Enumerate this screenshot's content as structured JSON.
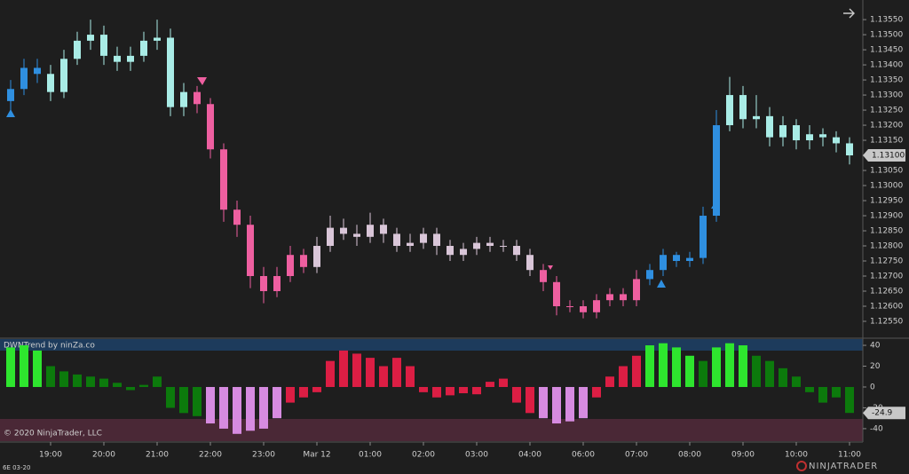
{
  "chart_data": [
    {
      "type": "candlestick",
      "categories": [
        null,
        null,
        null,
        "19:00",
        null,
        null,
        null,
        "20:00",
        null,
        null,
        null,
        "21:00",
        null,
        null,
        null,
        "22:00",
        null,
        null,
        null,
        "23:00",
        null,
        null,
        null,
        "Mar 12",
        null,
        null,
        null,
        "01:00",
        null,
        null,
        null,
        "02:00",
        null,
        null,
        null,
        "03:00",
        null,
        null,
        null,
        "04:00",
        null,
        null,
        null,
        "06:00",
        null,
        null,
        null,
        "07:00",
        null,
        null,
        null,
        "08:00",
        null,
        null,
        null,
        "09:00",
        null,
        null,
        null,
        "10:00",
        null,
        null,
        null,
        "11:00"
      ],
      "open": [
        1.1328,
        1.1332,
        1.1339,
        1.1337,
        1.1331,
        1.1342,
        1.1348,
        1.135,
        1.1343,
        1.1341,
        1.1343,
        1.1348,
        1.1349,
        1.1326,
        1.1331,
        1.1327,
        1.1312,
        1.1292,
        1.1287,
        1.127,
        1.1265,
        1.127,
        1.1277,
        1.1273,
        1.128,
        1.1286,
        1.1284,
        1.1283,
        1.1287,
        1.1284,
        1.128,
        1.1281,
        1.1284,
        1.128,
        1.1277,
        1.1279,
        1.1281,
        1.128,
        1.128,
        1.1277,
        1.1272,
        1.1268,
        1.126,
        1.126,
        1.1258,
        1.1262,
        1.1264,
        1.1262,
        1.1269,
        1.1272,
        1.1277,
        1.1275,
        1.1276,
        1.129,
        1.132,
        1.133,
        1.1322,
        1.1323,
        1.1316,
        1.132,
        1.1315,
        1.1317,
        1.1316,
        1.1314
      ],
      "high": [
        1.1335,
        1.1342,
        1.1342,
        1.134,
        1.1345,
        1.1351,
        1.1355,
        1.1353,
        1.1346,
        1.1346,
        1.1351,
        1.1355,
        1.1352,
        1.1334,
        1.1333,
        1.1329,
        1.1314,
        1.1295,
        1.129,
        1.1273,
        1.1273,
        1.128,
        1.1279,
        1.1283,
        1.129,
        1.1289,
        1.1287,
        1.1291,
        1.1289,
        1.1286,
        1.1284,
        1.1286,
        1.1286,
        1.1282,
        1.1281,
        1.1283,
        1.1283,
        1.1282,
        1.1282,
        1.1279,
        1.1274,
        1.127,
        1.1262,
        1.1262,
        1.1264,
        1.1266,
        1.1266,
        1.1272,
        1.1274,
        1.1279,
        1.1278,
        1.1278,
        1.1293,
        1.1325,
        1.1336,
        1.1333,
        1.133,
        1.1326,
        1.1323,
        1.1322,
        1.132,
        1.1319,
        1.1318,
        1.1316
      ],
      "low": [
        1.1325,
        1.133,
        1.1334,
        1.1328,
        1.1329,
        1.134,
        1.1345,
        1.134,
        1.1338,
        1.1338,
        1.1341,
        1.1345,
        1.1323,
        1.1323,
        1.1324,
        1.1309,
        1.1288,
        1.1283,
        1.1266,
        1.1261,
        1.1263,
        1.1268,
        1.1271,
        1.1271,
        1.1278,
        1.1282,
        1.128,
        1.1281,
        1.1281,
        1.1278,
        1.1278,
        1.1279,
        1.1277,
        1.1275,
        1.1275,
        1.1277,
        1.1278,
        1.1278,
        1.1275,
        1.127,
        1.1265,
        1.1257,
        1.1258,
        1.1256,
        1.1256,
        1.126,
        1.126,
        1.126,
        1.1267,
        1.127,
        1.1273,
        1.1273,
        1.1274,
        1.1288,
        1.1318,
        1.1319,
        1.1319,
        1.1313,
        1.1313,
        1.1312,
        1.1312,
        1.1313,
        1.1311,
        1.1307
      ],
      "close": [
        1.1332,
        1.1339,
        1.1337,
        1.1331,
        1.1342,
        1.1348,
        1.135,
        1.1343,
        1.1341,
        1.1343,
        1.1348,
        1.1349,
        1.1326,
        1.1331,
        1.1327,
        1.1312,
        1.1292,
        1.1287,
        1.127,
        1.1265,
        1.127,
        1.1277,
        1.1273,
        1.128,
        1.1286,
        1.1284,
        1.1283,
        1.1287,
        1.1284,
        1.128,
        1.1281,
        1.1284,
        1.128,
        1.1277,
        1.1279,
        1.1281,
        1.128,
        1.128,
        1.1277,
        1.1272,
        1.1268,
        1.126,
        1.126,
        1.1258,
        1.1262,
        1.1264,
        1.1262,
        1.1269,
        1.1272,
        1.1277,
        1.1275,
        1.1276,
        1.129,
        1.132,
        1.133,
        1.1322,
        1.1323,
        1.1316,
        1.132,
        1.1315,
        1.1317,
        1.1316,
        1.1314,
        1.131
      ],
      "colors": [
        "#2f8fe0",
        "#2f8fe0",
        "#2f8fe0",
        "#a9ece6",
        "#a9ece6",
        "#a9ece6",
        "#a9ece6",
        "#a9ece6",
        "#a9ece6",
        "#a9ece6",
        "#a9ece6",
        "#a9ece6",
        "#a9ece6",
        "#a9ece6",
        "#ee5fa0",
        "#ee5fa0",
        "#ee5fa0",
        "#ee5fa0",
        "#ee5fa0",
        "#ee5fa0",
        "#ee5fa0",
        "#ee5fa0",
        "#ee5fa0",
        "#d9c6d8",
        "#d9c6d8",
        "#d9c6d8",
        "#d9c6d8",
        "#d9c6d8",
        "#d9c6d8",
        "#d9c6d8",
        "#d9c6d8",
        "#d9c6d8",
        "#d9c6d8",
        "#d9c6d8",
        "#d9c6d8",
        "#d9c6d8",
        "#d9c6d8",
        "#d9c6d8",
        "#d9c6d8",
        "#d9c6d8",
        "#ee5fa0",
        "#ee5fa0",
        "#ee5fa0",
        "#ee5fa0",
        "#ee5fa0",
        "#ee5fa0",
        "#ee5fa0",
        "#ee5fa0",
        "#2f8fe0",
        "#2f8fe0",
        "#2f8fe0",
        "#2f8fe0",
        "#2f8fe0",
        "#2f8fe0",
        "#a9ece6",
        "#a9ece6",
        "#a9ece6",
        "#a9ece6",
        "#a9ece6",
        "#a9ece6",
        "#a9ece6",
        "#a9ece6",
        "#a9ece6",
        "#a9ece6"
      ],
      "ylim": [
        1.12497,
        1.13615
      ],
      "yticks": [
        {
          "value": 1.1255,
          "label": "1.12550"
        },
        {
          "value": 1.126,
          "label": "1.12600"
        },
        {
          "value": 1.1265,
          "label": "1.12650"
        },
        {
          "value": 1.127,
          "label": "1.12700"
        },
        {
          "value": 1.1275,
          "label": "1.12750"
        },
        {
          "value": 1.128,
          "label": "1.12800"
        },
        {
          "value": 1.1285,
          "label": "1.12850"
        },
        {
          "value": 1.129,
          "label": "1.12900"
        },
        {
          "value": 1.1295,
          "label": "1.12950"
        },
        {
          "value": 1.13,
          "label": "1.13000"
        },
        {
          "value": 1.1305,
          "label": "1.13050"
        },
        {
          "value": 1.131,
          "label": "1.13100"
        },
        {
          "value": 1.1315,
          "label": "1.13150"
        },
        {
          "value": 1.132,
          "label": "1.13200"
        },
        {
          "value": 1.1325,
          "label": "1.13250"
        },
        {
          "value": 1.133,
          "label": "1.13300"
        },
        {
          "value": 1.1335,
          "label": "1.13350"
        },
        {
          "value": 1.134,
          "label": "1.13400"
        },
        {
          "value": 1.1345,
          "label": "1.13450"
        },
        {
          "value": 1.135,
          "label": "1.13500"
        },
        {
          "value": 1.1355,
          "label": "1.13550"
        }
      ],
      "last_value": {
        "value": 1.131,
        "label": "1.13100"
      }
    },
    {
      "type": "bar",
      "title": "DWNTrend by ninZa.co",
      "values": [
        38,
        40,
        35,
        20,
        15,
        12,
        10,
        8,
        4,
        -3,
        2,
        10,
        -20,
        -25,
        -28,
        -35,
        -40,
        -45,
        -42,
        -40,
        -30,
        -15,
        -10,
        -5,
        25,
        35,
        32,
        28,
        20,
        28,
        20,
        -5,
        -10,
        -8,
        -6,
        -7,
        5,
        8,
        -15,
        -25,
        -30,
        -35,
        -33,
        -30,
        -10,
        10,
        20,
        30,
        40,
        42,
        38,
        30,
        25,
        38,
        42,
        40,
        30,
        25,
        18,
        10,
        -5,
        -15,
        -10,
        -24.9
      ],
      "colors": [
        "#2ee52e",
        "#2ee52e",
        "#2ee52e",
        "#0c7a0c",
        "#0c7a0c",
        "#0c7a0c",
        "#0c7a0c",
        "#0c7a0c",
        "#0c7a0c",
        "#0c7a0c",
        "#0c7a0c",
        "#0c7a0c",
        "#0c7a0c",
        "#0c7a0c",
        "#0c7a0c",
        "#d68be0",
        "#d68be0",
        "#d68be0",
        "#d68be0",
        "#d68be0",
        "#d68be0",
        "#dc1e44",
        "#dc1e44",
        "#dc1e44",
        "#dc1e44",
        "#dc1e44",
        "#dc1e44",
        "#dc1e44",
        "#dc1e44",
        "#dc1e44",
        "#dc1e44",
        "#dc1e44",
        "#dc1e44",
        "#dc1e44",
        "#dc1e44",
        "#dc1e44",
        "#dc1e44",
        "#dc1e44",
        "#dc1e44",
        "#dc1e44",
        "#d68be0",
        "#d68be0",
        "#d68be0",
        "#d68be0",
        "#dc1e44",
        "#dc1e44",
        "#dc1e44",
        "#dc1e44",
        "#2ee52e",
        "#2ee52e",
        "#2ee52e",
        "#2ee52e",
        "#0c7a0c",
        "#2ee52e",
        "#2ee52e",
        "#2ee52e",
        "#0c7a0c",
        "#0c7a0c",
        "#0c7a0c",
        "#0c7a0c",
        "#0c7a0c",
        "#0c7a0c",
        "#0c7a0c",
        "#0c7a0c"
      ],
      "ylim": [
        -52,
        46
      ],
      "yticks": [
        -40,
        -20,
        0,
        20,
        40
      ],
      "last_value": -24.9
    }
  ],
  "footer": {
    "copyright": "© 2020 NinjaTrader, LLC",
    "instrument": "6E 03-20",
    "logo": "NINJATRADER"
  }
}
